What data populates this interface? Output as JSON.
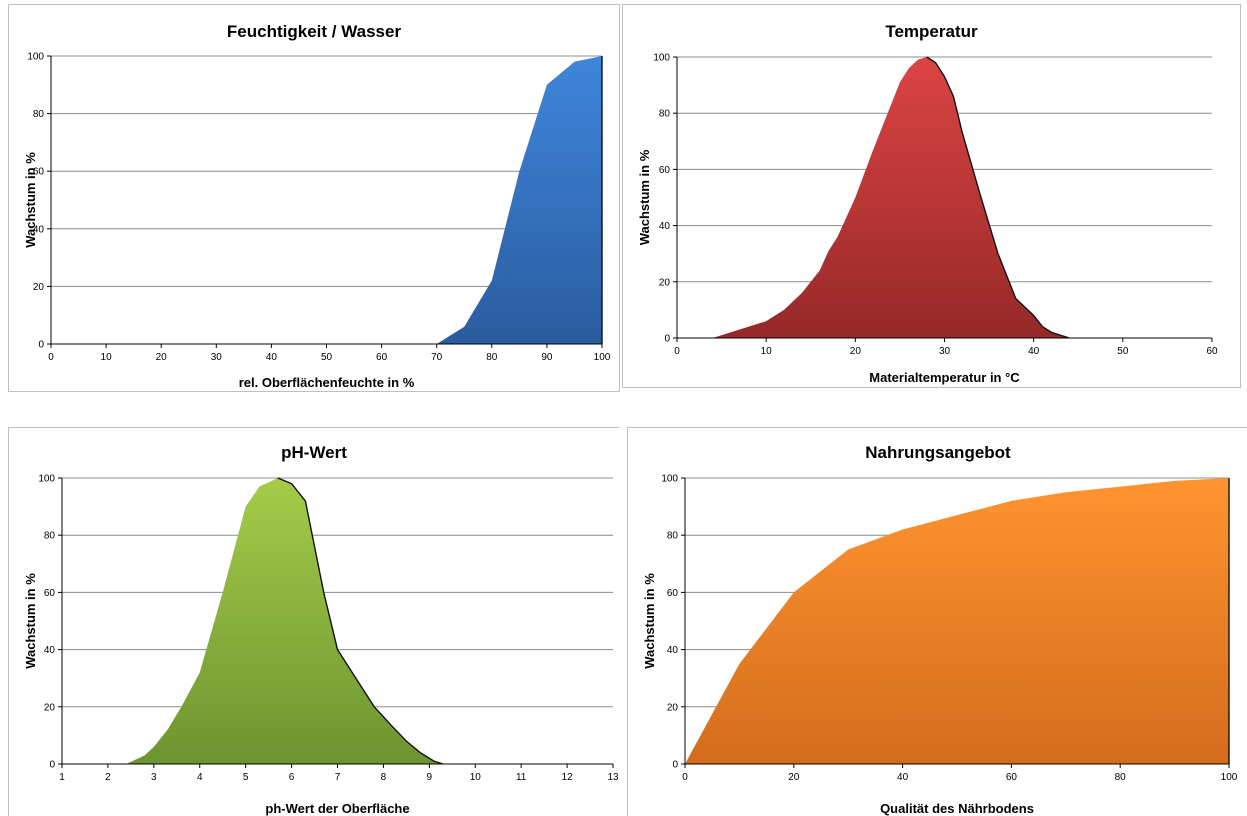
{
  "chart_data": [
    {
      "type": "area",
      "title": "Feuchtigkeit / Wasser",
      "xlabel": "rel. Oberflächenfeuchte in %",
      "ylabel": "Wachstum in %",
      "xlim": [
        0,
        100
      ],
      "ylim": [
        0,
        100
      ],
      "xticks": [
        0,
        10,
        20,
        30,
        40,
        50,
        60,
        70,
        80,
        90,
        100
      ],
      "yticks": [
        0,
        20,
        40,
        60,
        80,
        100
      ],
      "grid": "horizontal",
      "legend": "none",
      "color_top": "#3f86dc",
      "color_bottom": "#2a5c9e",
      "x": [
        0,
        70,
        75,
        80,
        85,
        90,
        95,
        100,
        100
      ],
      "y": [
        0,
        0,
        6,
        22,
        60,
        90,
        98,
        100,
        0
      ]
    },
    {
      "type": "area",
      "title": "Temperatur",
      "xlabel": "Materialtemperatur in °C",
      "ylabel": "Wachstum in %",
      "xlim": [
        0,
        60
      ],
      "ylim": [
        0,
        100
      ],
      "xticks": [
        0,
        10,
        20,
        30,
        40,
        50,
        60
      ],
      "yticks": [
        0,
        20,
        40,
        60,
        80,
        100
      ],
      "grid": "horizontal",
      "legend": "none",
      "color_top": "#dc4444",
      "color_bottom": "#962828",
      "x": [
        4,
        6,
        8,
        10,
        12,
        14,
        16,
        17,
        18,
        20,
        22,
        24,
        25,
        26,
        27,
        28,
        29,
        30,
        31,
        32,
        34,
        36,
        38,
        40,
        41,
        42,
        44
      ],
      "y": [
        0,
        2,
        4,
        6,
        10,
        16,
        24,
        31,
        36,
        50,
        67,
        83,
        91,
        96,
        99,
        100,
        98,
        93,
        86,
        73,
        51,
        30,
        14,
        8,
        4,
        2,
        0
      ]
    },
    {
      "type": "area",
      "title": "pH-Wert",
      "xlabel": "ph-Wert der Oberfläche",
      "ylabel": "Wachstum in %",
      "xlim": [
        1,
        13
      ],
      "ylim": [
        0,
        100
      ],
      "xticks": [
        1,
        2,
        3,
        4,
        5,
        6,
        7,
        8,
        9,
        10,
        11,
        12,
        13
      ],
      "yticks": [
        0,
        20,
        40,
        60,
        80,
        100
      ],
      "grid": "horizontal",
      "legend": "none",
      "color_top": "#a4cc48",
      "color_bottom": "#6c9430",
      "x": [
        2.4,
        2.8,
        3.0,
        3.3,
        3.6,
        4.0,
        4.5,
        5.0,
        5.3,
        5.7,
        6.0,
        6.3,
        6.7,
        7.0,
        7.4,
        7.8,
        8.2,
        8.5,
        8.8,
        9.1,
        9.3
      ],
      "y": [
        0,
        3,
        6,
        12,
        20,
        32,
        60,
        90,
        97,
        100,
        98,
        92,
        60,
        40,
        30,
        20,
        13,
        8,
        4,
        1,
        0
      ]
    },
    {
      "type": "area",
      "title": "Nahrungsangebot",
      "xlabel": "Qualität des Nährbodens",
      "ylabel": "Wachstum in %",
      "xlim": [
        0,
        100
      ],
      "ylim": [
        0,
        100
      ],
      "xticks": [
        0,
        20,
        40,
        60,
        80,
        100
      ],
      "yticks": [
        0,
        20,
        40,
        60,
        80,
        100
      ],
      "grid": "horizontal",
      "legend": "none",
      "color_top": "#ff9430",
      "color_bottom": "#d46c1c",
      "x": [
        0,
        10,
        20,
        30,
        40,
        50,
        60,
        70,
        80,
        90,
        100,
        100
      ],
      "y": [
        0,
        35,
        60,
        75,
        82,
        87,
        92,
        95,
        97,
        99,
        100,
        0
      ]
    }
  ]
}
